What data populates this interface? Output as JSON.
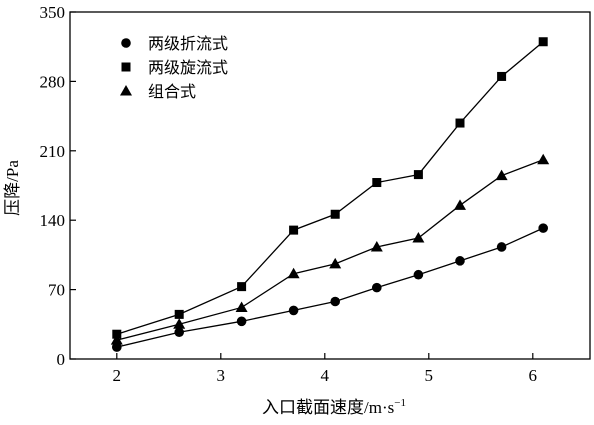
{
  "chart_data": {
    "type": "line",
    "xlabel": "入口截面速度/m·s",
    "xlabel_sup": "−1",
    "ylabel": "压降/Pa",
    "xlim": [
      1.55,
      6.55
    ],
    "ylim": [
      0,
      350
    ],
    "xticks": [
      2,
      3,
      4,
      5,
      6
    ],
    "yticks": [
      0,
      70,
      140,
      210,
      280,
      350
    ],
    "x": [
      2.0,
      2.6,
      3.2,
      3.7,
      4.1,
      4.5,
      4.9,
      5.3,
      5.7,
      6.1
    ],
    "series": [
      {
        "name": "两级折流式",
        "marker": "circle",
        "values": [
          12,
          27,
          38,
          49,
          58,
          72,
          85,
          99,
          113,
          132
        ]
      },
      {
        "name": "两级旋流式",
        "marker": "square",
        "values": [
          25,
          45,
          73,
          130,
          146,
          178,
          186,
          238,
          285,
          320
        ]
      },
      {
        "name": "组合式",
        "marker": "triangle",
        "values": [
          19,
          35,
          52,
          86,
          96,
          113,
          122,
          155,
          185,
          201
        ]
      }
    ],
    "grid": false,
    "legend_position": "top-left"
  }
}
